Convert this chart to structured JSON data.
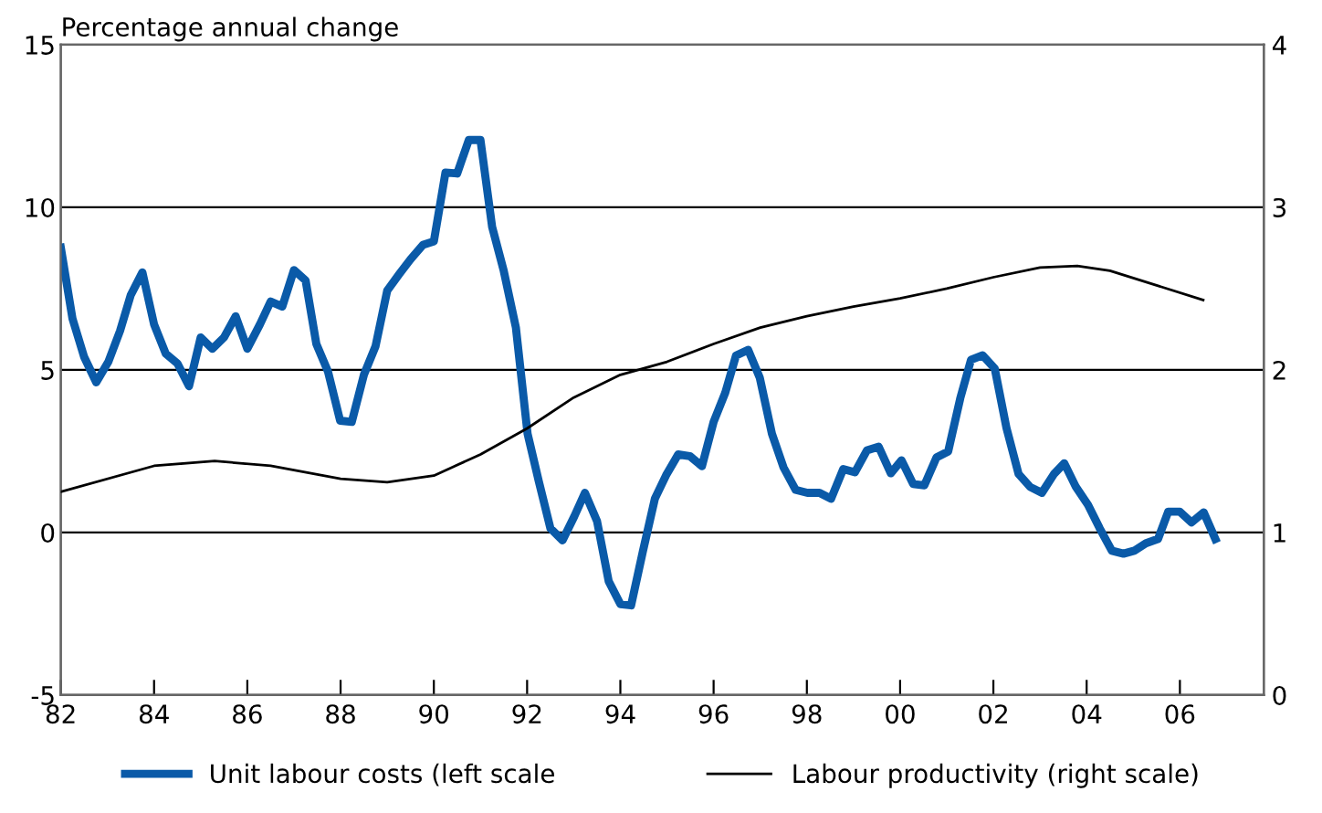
{
  "chart_data": {
    "type": "line",
    "title": "Percentage annual change",
    "xlim": [
      1982,
      2007.8
    ],
    "xticks": [
      {
        "value": 1982,
        "label": "82"
      },
      {
        "value": 1984,
        "label": "84"
      },
      {
        "value": 1986,
        "label": "86"
      },
      {
        "value": 1988,
        "label": "88"
      },
      {
        "value": 1990,
        "label": "90"
      },
      {
        "value": 1992,
        "label": "92"
      },
      {
        "value": 1994,
        "label": "94"
      },
      {
        "value": 1996,
        "label": "96"
      },
      {
        "value": 1998,
        "label": "98"
      },
      {
        "value": 2000,
        "label": "00"
      },
      {
        "value": 2002,
        "label": "02"
      },
      {
        "value": 2004,
        "label": "04"
      },
      {
        "value": 2006,
        "label": "06"
      }
    ],
    "ylim": [
      -5,
      15
    ],
    "yticks": [
      -5,
      0,
      5,
      10,
      15
    ],
    "y2lim": [
      0,
      4
    ],
    "y2ticks": [
      0,
      1,
      2,
      3,
      4
    ],
    "grid": "y",
    "legend": "bottom",
    "series": [
      {
        "name": "Unit labour costs (left scale",
        "color": "#0a5aa8",
        "axis": "y",
        "x": [
          1982.0,
          1982.25,
          1982.5,
          1982.76,
          1983.02,
          1983.27,
          1983.5,
          1983.75,
          1984.0,
          1984.25,
          1984.5,
          1984.75,
          1985.0,
          1985.25,
          1985.5,
          1985.75,
          1986.0,
          1986.27,
          1986.5,
          1986.75,
          1987.0,
          1987.25,
          1987.48,
          1987.73,
          1987.99,
          1988.24,
          1988.5,
          1988.75,
          1989.0,
          1989.26,
          1989.5,
          1989.77,
          1990.0,
          1990.25,
          1990.5,
          1990.75,
          1991.0,
          1991.25,
          1991.5,
          1991.76,
          1992.01,
          1992.25,
          1992.5,
          1992.76,
          1993.01,
          1993.24,
          1993.5,
          1993.75,
          1994.0,
          1994.23,
          1994.48,
          1994.74,
          1994.98,
          1995.24,
          1995.49,
          1995.75,
          1996.0,
          1996.25,
          1996.48,
          1996.74,
          1996.99,
          1997.25,
          1997.5,
          1997.76,
          1998.01,
          1998.27,
          1998.52,
          1998.78,
          1999.03,
          1999.29,
          1999.54,
          1999.8,
          2000.03,
          2000.28,
          2000.52,
          2000.78,
          2001.03,
          2001.29,
          2001.52,
          2001.77,
          2002.03,
          2002.28,
          2002.54,
          2002.79,
          2003.04,
          2003.3,
          2003.52,
          2003.77,
          2004.03,
          2004.28,
          2004.54,
          2004.79,
          2005.02,
          2005.27,
          2005.53,
          2005.75,
          2006.0,
          2006.25,
          2006.51,
          2006.76
        ],
        "values": [
          8.76,
          6.58,
          5.4,
          4.62,
          5.25,
          6.2,
          7.3,
          8.0,
          6.4,
          5.5,
          5.2,
          4.5,
          6.0,
          5.65,
          6.0,
          6.65,
          5.65,
          6.4,
          7.1,
          6.95,
          8.07,
          7.75,
          5.8,
          4.95,
          3.44,
          3.4,
          4.85,
          5.73,
          7.44,
          7.95,
          8.4,
          8.85,
          8.95,
          11.07,
          11.04,
          12.07,
          12.07,
          9.4,
          8.04,
          6.3,
          3.04,
          1.58,
          0.13,
          -0.24,
          0.49,
          1.22,
          0.35,
          -1.5,
          -2.2,
          -2.24,
          -0.6,
          1.04,
          1.76,
          2.4,
          2.35,
          2.04,
          3.4,
          4.3,
          5.44,
          5.62,
          4.76,
          3.04,
          2.0,
          1.31,
          1.22,
          1.22,
          1.04,
          1.95,
          1.85,
          2.53,
          2.64,
          1.82,
          2.22,
          1.49,
          1.45,
          2.31,
          2.49,
          4.13,
          5.31,
          5.45,
          5.04,
          3.22,
          1.8,
          1.4,
          1.22,
          1.8,
          2.13,
          1.4,
          0.85,
          0.13,
          -0.56,
          -0.65,
          -0.56,
          -0.33,
          -0.2,
          0.64,
          0.64,
          0.31,
          0.62,
          -0.2
        ]
      },
      {
        "name": "Labour productivity (right scale)",
        "color": "#000000",
        "axis": "y2",
        "x": [
          1982,
          1984,
          1985.3,
          1986.5,
          1988,
          1989,
          1990,
          1991,
          1992,
          1993,
          1994,
          1995,
          1996,
          1997,
          1998,
          1999,
          2000,
          2001,
          2002,
          2003,
          2003.8,
          2004.5,
          2005.5,
          2006.5
        ],
        "values": [
          1.25,
          1.41,
          1.44,
          1.41,
          1.33,
          1.31,
          1.35,
          1.48,
          1.64,
          1.83,
          1.97,
          2.05,
          2.16,
          2.26,
          2.33,
          2.39,
          2.44,
          2.5,
          2.57,
          2.63,
          2.64,
          2.61,
          2.52,
          2.43
        ]
      }
    ]
  }
}
